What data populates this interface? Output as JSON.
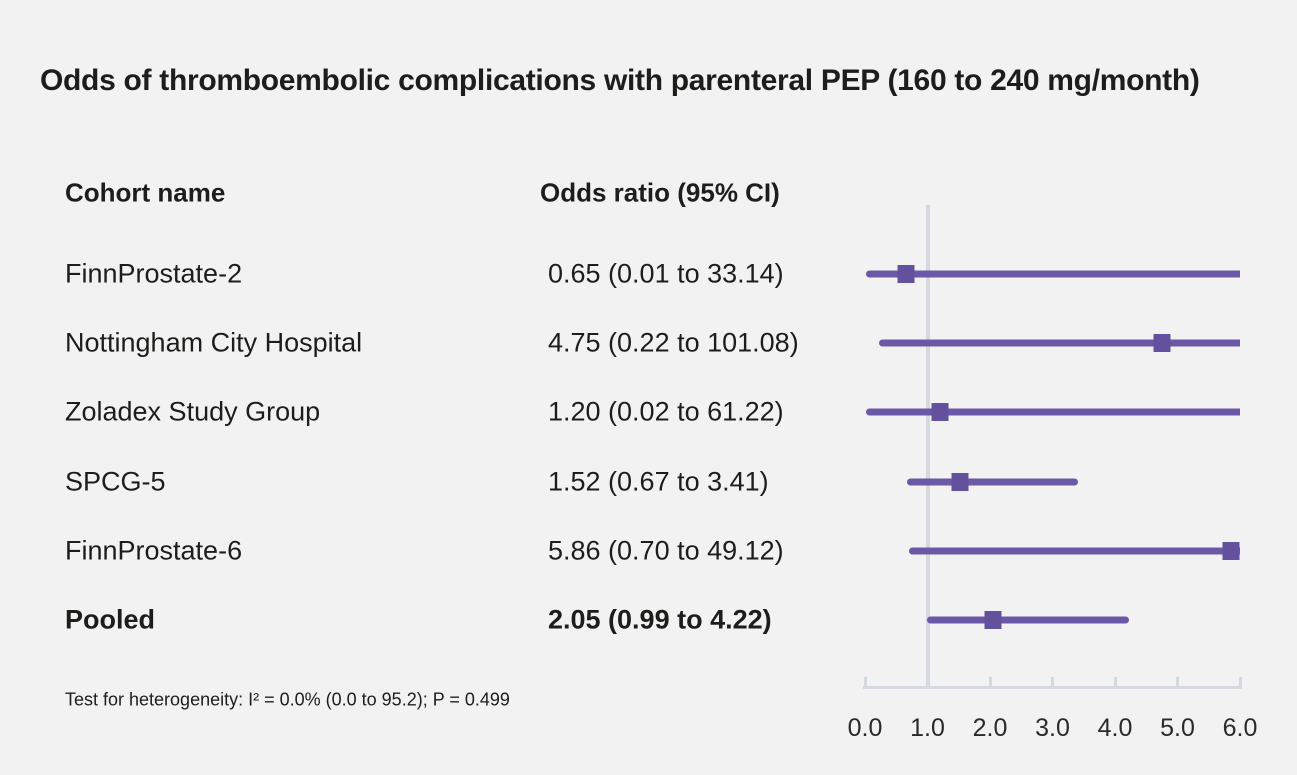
{
  "title": "Odds of thromboembolic complications with parenteral PEP (160 to 240 mg/month)",
  "table": {
    "headers": [
      "Cohort name",
      "Odds ratio (95% CI)"
    ]
  },
  "footnote": "Test for heterogeneity: I² = 0.0% (0.0 to 95.2); P = 0.499",
  "colors": {
    "background": "#f2f2f2",
    "ci_line": "#6b59a7",
    "marker": "#63519e",
    "axis": "#d4d8df",
    "text": "#1d1d1b"
  },
  "chart_data": {
    "type": "scatter",
    "subtype": "forest-plot",
    "title": "Odds of thromboembolic complications with parenteral PEP (160 to 240 mg/month)",
    "xlabel": "Odds ratio",
    "ylabel": "Cohort name",
    "xlim": [
      0.0,
      6.0
    ],
    "reference_line_x": 1.0,
    "grid": false,
    "legend": "none",
    "x_ticks": [
      {
        "value": 0.0,
        "label": "0.0"
      },
      {
        "value": 1.0,
        "label": "1.0"
      },
      {
        "value": 2.0,
        "label": "2.0"
      },
      {
        "value": 3.0,
        "label": "3.0"
      },
      {
        "value": 4.0,
        "label": "4.0"
      },
      {
        "value": 5.0,
        "label": "5.0"
      },
      {
        "value": 6.0,
        "label": "6.0"
      }
    ],
    "rows": [
      {
        "label": "FinnProstate-2",
        "or_text": "0.65 (0.01 to 33.14)",
        "or": 0.65,
        "ci_low": 0.01,
        "ci_high": 33.14,
        "pooled": false
      },
      {
        "label": "Nottingham City Hospital",
        "or_text": "4.75 (0.22 to 101.08)",
        "or": 4.75,
        "ci_low": 0.22,
        "ci_high": 101.08,
        "pooled": false
      },
      {
        "label": "Zoladex Study Group",
        "or_text": "1.20 (0.02 to 61.22)",
        "or": 1.2,
        "ci_low": 0.02,
        "ci_high": 61.22,
        "pooled": false
      },
      {
        "label": "SPCG-5",
        "or_text": "1.52 (0.67 to 3.41)",
        "or": 1.52,
        "ci_low": 0.67,
        "ci_high": 3.41,
        "pooled": false
      },
      {
        "label": "FinnProstate-6",
        "or_text": "5.86 (0.70 to 49.12)",
        "or": 5.86,
        "ci_low": 0.7,
        "ci_high": 49.12,
        "pooled": false
      },
      {
        "label": "Pooled",
        "or_text": "2.05 (0.99 to 4.22)",
        "or": 2.05,
        "ci_low": 0.99,
        "ci_high": 4.22,
        "pooled": true
      }
    ]
  }
}
